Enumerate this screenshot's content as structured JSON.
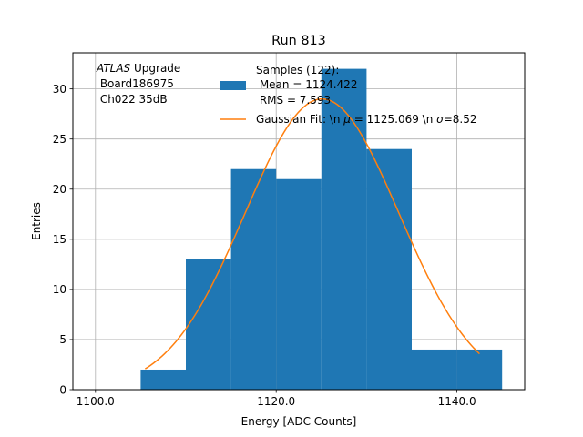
{
  "chart_data": {
    "type": "bar",
    "title": "Run 813",
    "xlabel": "Energy [ADC Counts]",
    "ylabel": "Entries",
    "xlim": [
      1097.5,
      1147.5
    ],
    "ylim": [
      0,
      33.6
    ],
    "xticks": [
      1100,
      1120,
      1140
    ],
    "xtick_labels": [
      "1100.0",
      "1120.0",
      "1140.0"
    ],
    "yticks": [
      0,
      5,
      10,
      15,
      20,
      25,
      30
    ],
    "ytick_labels": [
      "0",
      "5",
      "10",
      "15",
      "20",
      "25",
      "30"
    ],
    "grid": true,
    "bar_color": "#1f77b4",
    "fit_color": "#ff7f0e",
    "histogram": {
      "bin_edges": [
        1105,
        1110,
        1115,
        1120,
        1125,
        1130,
        1135,
        1140,
        1145
      ],
      "counts": [
        2,
        13,
        22,
        21,
        32,
        24,
        4,
        4
      ]
    },
    "gaussian_fit": {
      "mu": 1125.069,
      "sigma": 8.52,
      "x_range": [
        1105.5,
        1142.5
      ],
      "amplitude": 29.0
    },
    "annotation_lines": [
      "ATLAS Upgrade",
      " Board186975",
      " Ch022 35dB"
    ],
    "annotation_italic_word": "ATLAS",
    "annotation_rest": " Upgrade",
    "legend": {
      "position": "upper-center",
      "hist_lines": [
        "Samples (122):",
        " Mean = 1124.422",
        " RMS = 7.593"
      ],
      "fit_prefix": "Gaussian Fit: \\n ",
      "fit_mu_symbol": "μ",
      "fit_middle": " = 1125.069 \\n ",
      "fit_sigma_symbol": "σ",
      "fit_suffix": "=8.52"
    }
  }
}
